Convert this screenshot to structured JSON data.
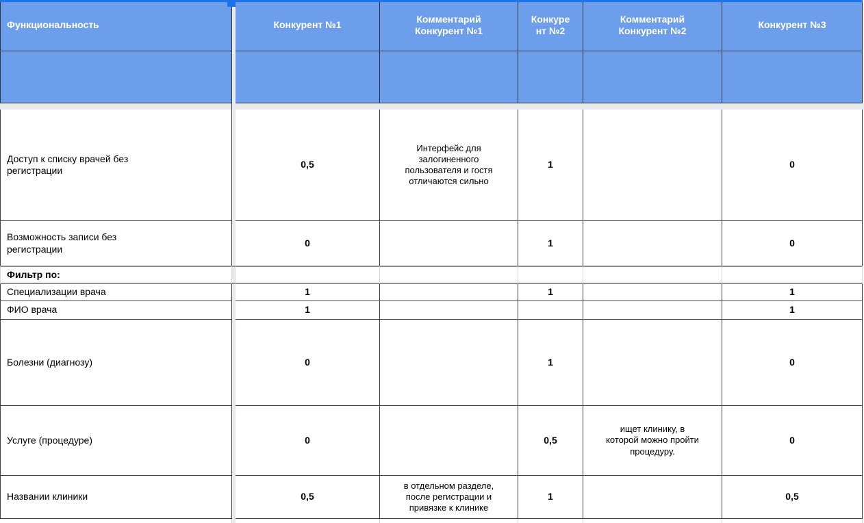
{
  "colors": {
    "header_bg": "#6d9eeb",
    "header_text": "#ffffff",
    "accent": "#1a73e8",
    "grid_border": "#3c4043",
    "section_border": "#8f8f8f",
    "freeze_gap": "#e8eaed"
  },
  "header": {
    "col_feature": "Функциональность",
    "col_competitor1": "Конкурент №1",
    "col_comment1": "Комментарий\nКонкурент №1",
    "col_competitor2": "Конкуре\nнт №2",
    "col_comment2": "Комментарий\nКонкурент №2",
    "col_competitor3": "Конкурент №3"
  },
  "rows": [
    {
      "label": "Доступ к списку врачей без\nрегистрации",
      "score1": "0,5",
      "comment1": "Интерфейс для\nзалогиненного\nпользователя и гостя\nотличаются сильно",
      "score2": "1",
      "comment2": "",
      "score3": "0"
    },
    {
      "label": "Возможность записи без\nрегистрации",
      "score1": "0",
      "comment1": "",
      "score2": "1",
      "comment2": "",
      "score3": "0"
    },
    {
      "label": "Фильтр по:",
      "score1": "",
      "comment1": "",
      "score2": "",
      "comment2": "",
      "score3": ""
    },
    {
      "label": "Специализации врача",
      "score1": "1",
      "comment1": "",
      "score2": "1",
      "comment2": "",
      "score3": "1"
    },
    {
      "label": "ФИО врача",
      "score1": "1",
      "comment1": "",
      "score2": "",
      "comment2": "",
      "score3": "1"
    },
    {
      "label": "Болезни (диагнозу)",
      "score1": "0",
      "comment1": "",
      "score2": "1",
      "comment2": "",
      "score3": "0"
    },
    {
      "label": "Услуге (процедуре)",
      "score1": "0",
      "comment1": "",
      "score2": "0,5",
      "comment2": "ищет клинику, в\nкоторой можно пройти\nпроцедуру.",
      "score3": "0"
    },
    {
      "label": "Названии клиники",
      "score1": "0,5",
      "comment1": "в отдельном разделе,\nпосле регистрации и\nпривязке к клинике",
      "score2": "1",
      "comment2": "",
      "score3": "0,5"
    }
  ]
}
